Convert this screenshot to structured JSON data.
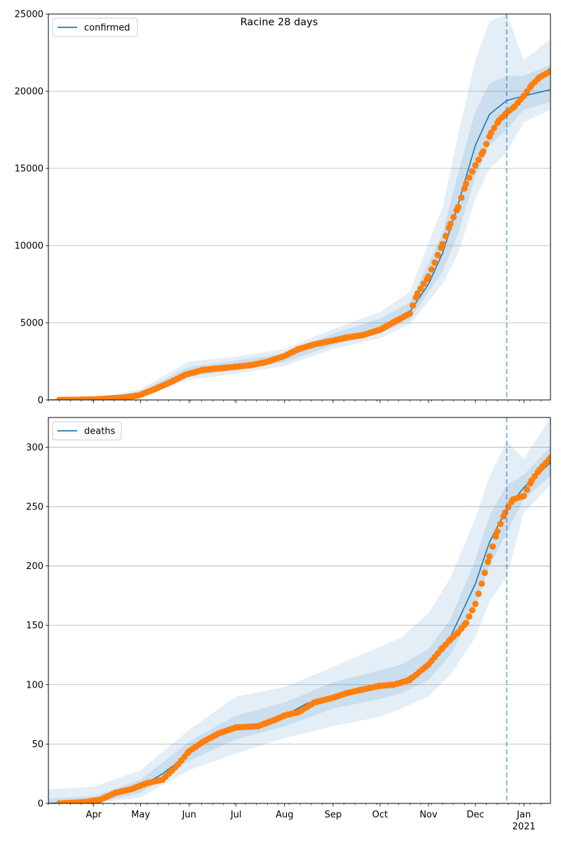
{
  "title": "Racine 28 days",
  "chart_data": [
    {
      "type": "line",
      "legend": "top-left",
      "series_label": "confirmed",
      "ylim": [
        0,
        25000
      ],
      "yticks": [
        0,
        5000,
        10000,
        15000,
        20000,
        25000
      ],
      "grid": "y",
      "xrange": [
        "2020-03-03",
        "2021-01-18"
      ],
      "forecast_start": "2020-12-21",
      "model_line": [
        [
          "2020-03-03",
          0
        ],
        [
          "2020-04-01",
          30
        ],
        [
          "2020-04-20",
          150
        ],
        [
          "2020-05-05",
          500
        ],
        [
          "2020-05-20",
          1150
        ],
        [
          "2020-06-05",
          1850
        ],
        [
          "2020-06-25",
          2100
        ],
        [
          "2020-07-15",
          2250
        ],
        [
          "2020-08-01",
          2700
        ],
        [
          "2020-08-15",
          3400
        ],
        [
          "2020-09-01",
          3850
        ],
        [
          "2020-09-20",
          4150
        ],
        [
          "2020-10-05",
          4700
        ],
        [
          "2020-10-20",
          5700
        ],
        [
          "2020-11-01",
          7500
        ],
        [
          "2020-11-10",
          9500
        ],
        [
          "2020-11-20",
          12700
        ],
        [
          "2020-12-01",
          16500
        ],
        [
          "2020-12-10",
          18500
        ],
        [
          "2020-12-21",
          19400
        ],
        [
          "2021-01-01",
          19700
        ],
        [
          "2021-01-18",
          20100
        ]
      ],
      "band_outer": [
        [
          "2020-03-03",
          0,
          0
        ],
        [
          "2020-04-01",
          10,
          80
        ],
        [
          "2020-05-01",
          200,
          700
        ],
        [
          "2020-06-01",
          1300,
          2500
        ],
        [
          "2020-07-01",
          1700,
          2800
        ],
        [
          "2020-08-01",
          2200,
          3300
        ],
        [
          "2020-09-01",
          3300,
          4600
        ],
        [
          "2020-10-01",
          4000,
          5700
        ],
        [
          "2020-10-20",
          4900,
          7000
        ],
        [
          "2020-11-10",
          7500,
          12500
        ],
        [
          "2020-11-20",
          9500,
          17200
        ],
        [
          "2020-12-01",
          13000,
          22000
        ],
        [
          "2020-12-10",
          15000,
          24500
        ],
        [
          "2020-12-21",
          16000,
          25000
        ],
        [
          "2021-01-01",
          18000,
          22000
        ],
        [
          "2021-01-18",
          18800,
          23400
        ]
      ],
      "band_inner": [
        [
          "2020-03-03",
          0,
          0
        ],
        [
          "2020-04-01",
          15,
          50
        ],
        [
          "2020-05-01",
          300,
          550
        ],
        [
          "2020-06-01",
          1500,
          2150
        ],
        [
          "2020-07-01",
          1950,
          2550
        ],
        [
          "2020-08-01",
          2450,
          3000
        ],
        [
          "2020-09-01",
          3550,
          4300
        ],
        [
          "2020-10-01",
          4300,
          5250
        ],
        [
          "2020-10-20",
          5200,
          6300
        ],
        [
          "2020-11-10",
          8300,
          10800
        ],
        [
          "2020-11-20",
          10800,
          14700
        ],
        [
          "2020-12-01",
          14500,
          18700
        ],
        [
          "2020-12-10",
          16500,
          20500
        ],
        [
          "2020-12-21",
          17500,
          21000
        ],
        [
          "2021-01-01",
          18800,
          21000
        ],
        [
          "2021-01-18",
          19300,
          21700
        ]
      ],
      "observed": [
        [
          "2020-03-10",
          5
        ],
        [
          "2020-03-20",
          15
        ],
        [
          "2020-04-01",
          40
        ],
        [
          "2020-04-10",
          90
        ],
        [
          "2020-04-20",
          160
        ],
        [
          "2020-04-30",
          300
        ],
        [
          "2020-05-10",
          700
        ],
        [
          "2020-05-20",
          1150
        ],
        [
          "2020-05-30",
          1650
        ],
        [
          "2020-06-10",
          1950
        ],
        [
          "2020-06-20",
          2050
        ],
        [
          "2020-07-01",
          2150
        ],
        [
          "2020-07-10",
          2250
        ],
        [
          "2020-07-20",
          2450
        ],
        [
          "2020-08-01",
          2850
        ],
        [
          "2020-08-10",
          3300
        ],
        [
          "2020-08-20",
          3600
        ],
        [
          "2020-09-01",
          3850
        ],
        [
          "2020-09-10",
          4050
        ],
        [
          "2020-09-20",
          4200
        ],
        [
          "2020-10-01",
          4550
        ],
        [
          "2020-10-10",
          5050
        ],
        [
          "2020-10-20",
          5600
        ],
        [
          "2020-10-25",
          6900
        ],
        [
          "2020-11-01",
          8000
        ],
        [
          "2020-11-05",
          8900
        ],
        [
          "2020-11-10",
          10100
        ],
        [
          "2020-11-15",
          11400
        ],
        [
          "2020-11-20",
          12500
        ],
        [
          "2020-11-25",
          14000
        ],
        [
          "2020-12-01",
          15200
        ],
        [
          "2020-12-06",
          16100
        ],
        [
          "2020-12-11",
          17300
        ],
        [
          "2020-12-16",
          18100
        ],
        [
          "2020-12-21",
          18600
        ],
        [
          "2020-12-26",
          19000
        ],
        [
          "2021-01-01",
          19700
        ],
        [
          "2021-01-06",
          20400
        ],
        [
          "2021-01-11",
          20900
        ],
        [
          "2021-01-18",
          21300
        ]
      ]
    },
    {
      "type": "line",
      "legend": "top-left",
      "series_label": "deaths",
      "ylim": [
        0,
        325
      ],
      "yticks": [
        0,
        50,
        100,
        150,
        200,
        250,
        300
      ],
      "grid": "y",
      "xrange": [
        "2020-03-03",
        "2021-01-18"
      ],
      "forecast_start": "2020-12-21",
      "xticks": [
        "Apr",
        "May",
        "Jun",
        "Jul",
        "Aug",
        "Sep",
        "Oct",
        "Nov",
        "Dec",
        "Jan"
      ],
      "year_label": "2021",
      "model_line": [
        [
          "2020-03-03",
          0
        ],
        [
          "2020-04-01",
          2
        ],
        [
          "2020-04-15",
          8
        ],
        [
          "2020-05-01",
          14
        ],
        [
          "2020-05-15",
          25
        ],
        [
          "2020-06-01",
          42
        ],
        [
          "2020-06-15",
          55
        ],
        [
          "2020-07-01",
          62
        ],
        [
          "2020-07-15",
          66
        ],
        [
          "2020-08-01",
          74
        ],
        [
          "2020-08-15",
          84
        ],
        [
          "2020-09-01",
          90
        ],
        [
          "2020-09-15",
          95
        ],
        [
          "2020-10-01",
          99
        ],
        [
          "2020-10-15",
          103
        ],
        [
          "2020-11-01",
          116
        ],
        [
          "2020-11-15",
          140
        ],
        [
          "2020-12-01",
          185
        ],
        [
          "2020-12-10",
          220
        ],
        [
          "2020-12-21",
          248
        ],
        [
          "2021-01-01",
          266
        ],
        [
          "2021-01-18",
          287
        ]
      ],
      "band_outer": [
        [
          "2020-03-03",
          0,
          12
        ],
        [
          "2020-04-01",
          0,
          14
        ],
        [
          "2020-05-01",
          5,
          28
        ],
        [
          "2020-06-01",
          28,
          62
        ],
        [
          "2020-07-01",
          42,
          90
        ],
        [
          "2020-08-01",
          55,
          98
        ],
        [
          "2020-09-01",
          65,
          115
        ],
        [
          "2020-10-01",
          73,
          132
        ],
        [
          "2020-10-15",
          80,
          140
        ],
        [
          "2020-11-01",
          90,
          160
        ],
        [
          "2020-11-15",
          108,
          190
        ],
        [
          "2020-12-01",
          140,
          240
        ],
        [
          "2020-12-10",
          170,
          275
        ],
        [
          "2020-12-21",
          190,
          305
        ],
        [
          "2021-01-01",
          245,
          290
        ],
        [
          "2021-01-18",
          268,
          325
        ]
      ],
      "band_inner": [
        [
          "2020-03-03",
          0,
          4
        ],
        [
          "2020-04-01",
          0,
          6
        ],
        [
          "2020-05-01",
          9,
          20
        ],
        [
          "2020-06-01",
          36,
          52
        ],
        [
          "2020-07-01",
          54,
          74
        ],
        [
          "2020-08-01",
          65,
          85
        ],
        [
          "2020-09-01",
          80,
          102
        ],
        [
          "2020-10-01",
          88,
          112
        ],
        [
          "2020-10-15",
          93,
          117
        ],
        [
          "2020-11-01",
          104,
          130
        ],
        [
          "2020-11-15",
          125,
          155
        ],
        [
          "2020-12-01",
          166,
          205
        ],
        [
          "2020-12-10",
          200,
          242
        ],
        [
          "2020-12-21",
          228,
          268
        ],
        [
          "2021-01-01",
          256,
          277
        ],
        [
          "2021-01-18",
          276,
          300
        ]
      ],
      "observed": [
        [
          "2020-03-10",
          0
        ],
        [
          "2020-03-25",
          1
        ],
        [
          "2020-04-05",
          3
        ],
        [
          "2020-04-15",
          9
        ],
        [
          "2020-04-25",
          12
        ],
        [
          "2020-05-05",
          17
        ],
        [
          "2020-05-15",
          20
        ],
        [
          "2020-05-25",
          33
        ],
        [
          "2020-06-01",
          44
        ],
        [
          "2020-06-10",
          52
        ],
        [
          "2020-06-20",
          59
        ],
        [
          "2020-07-01",
          64
        ],
        [
          "2020-07-15",
          65
        ],
        [
          "2020-07-25",
          70
        ],
        [
          "2020-08-01",
          74
        ],
        [
          "2020-08-10",
          77
        ],
        [
          "2020-08-20",
          85
        ],
        [
          "2020-09-01",
          89
        ],
        [
          "2020-09-10",
          93
        ],
        [
          "2020-09-20",
          96
        ],
        [
          "2020-10-01",
          99
        ],
        [
          "2020-10-10",
          100
        ],
        [
          "2020-10-20",
          104
        ],
        [
          "2020-11-01",
          117
        ],
        [
          "2020-11-10",
          131
        ],
        [
          "2020-11-15",
          138
        ],
        [
          "2020-11-20",
          144
        ],
        [
          "2020-11-25",
          152
        ],
        [
          "2020-12-01",
          168
        ],
        [
          "2020-12-05",
          185
        ],
        [
          "2020-12-10",
          208
        ],
        [
          "2020-12-15",
          229
        ],
        [
          "2020-12-20",
          245
        ],
        [
          "2020-12-25",
          256
        ],
        [
          "2021-01-01",
          259
        ],
        [
          "2021-01-06",
          272
        ],
        [
          "2021-01-11",
          281
        ],
        [
          "2021-01-18",
          291
        ]
      ]
    }
  ]
}
